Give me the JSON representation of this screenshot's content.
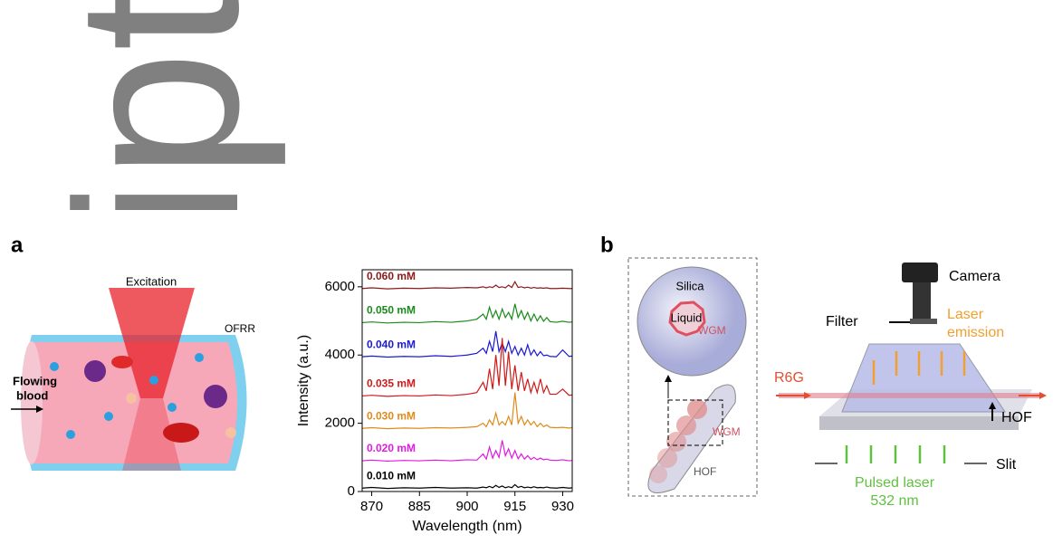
{
  "watermark": "ipt",
  "panel_a": {
    "label": "a",
    "illustration": {
      "excitation": "Excitation",
      "ofrr": "OFRR",
      "flow": [
        "Flowing",
        "blood"
      ]
    }
  },
  "chart_data": {
    "type": "line",
    "xlabel": "Wavelength (nm)",
    "ylabel": "Intensity (a.u.)",
    "xlim": [
      867,
      933
    ],
    "ylim": [
      0,
      6500
    ],
    "xticks": [
      870,
      885,
      900,
      915,
      930
    ],
    "yticks": [
      0,
      2000,
      4000,
      6000
    ],
    "x": [
      867,
      870,
      875,
      880,
      885,
      890,
      895,
      900,
      903,
      905,
      906,
      907,
      908,
      909,
      910,
      911,
      912,
      913,
      914,
      915,
      916,
      917,
      918,
      919,
      920,
      921,
      922,
      923,
      924,
      925,
      926,
      928,
      930,
      932,
      933
    ],
    "series": [
      {
        "name": "0.060 mM",
        "color": "#8b1a1a",
        "values": [
          5950,
          5970,
          5940,
          5960,
          5950,
          5970,
          5960,
          5980,
          5970,
          6000,
          5970,
          6000,
          5980,
          6050,
          5980,
          6000,
          5970,
          6050,
          5980,
          6150,
          5980,
          6000,
          5970,
          5990,
          5960,
          5980,
          5960,
          5970,
          5960,
          5970,
          5950,
          5950,
          5960,
          5950,
          5950
        ]
      },
      {
        "name": "0.050 mM",
        "color": "#1a8a1a",
        "values": [
          4950,
          4970,
          4940,
          4960,
          4950,
          4980,
          4960,
          5000,
          5050,
          5200,
          5050,
          5400,
          5100,
          5300,
          5050,
          5350,
          5100,
          5250,
          5050,
          5500,
          5100,
          5300,
          5050,
          5250,
          5000,
          5200,
          5000,
          5150,
          4990,
          5100,
          4980,
          4960,
          4990,
          4960,
          4970
        ]
      },
      {
        "name": "0.040 mM",
        "color": "#1a1ad0",
        "values": [
          3950,
          3970,
          3940,
          3960,
          3950,
          3980,
          3960,
          4000,
          4050,
          4200,
          4050,
          4400,
          4100,
          4700,
          4100,
          4350,
          4100,
          4400,
          4050,
          4250,
          4000,
          4200,
          4000,
          4300,
          4000,
          4150,
          3980,
          4100,
          3980,
          4000,
          3960,
          3950,
          4150,
          3960,
          3970
        ]
      },
      {
        "name": "0.035 mM",
        "color": "#d01a1a",
        "values": [
          2800,
          2820,
          2790,
          2810,
          2800,
          2830,
          2810,
          2850,
          2900,
          3200,
          2950,
          3600,
          3000,
          4000,
          3100,
          4500,
          3100,
          4100,
          3000,
          3700,
          2950,
          3500,
          2950,
          3300,
          2900,
          3200,
          2900,
          3300,
          2900,
          3100,
          2850,
          2850,
          3000,
          2820,
          2830
        ]
      },
      {
        "name": "0.030 mM",
        "color": "#e08a1a",
        "values": [
          1850,
          1870,
          1840,
          1860,
          1850,
          1870,
          1860,
          1880,
          1900,
          2000,
          1900,
          2100,
          1950,
          2300,
          1950,
          2050,
          1950,
          2200,
          1950,
          2900,
          2000,
          2200,
          1950,
          2100,
          1950,
          2050,
          1900,
          2000,
          1900,
          1950,
          1880,
          1870,
          1880,
          1860,
          1870
        ]
      },
      {
        "name": "0.020 mM",
        "color": "#e01ae0",
        "values": [
          900,
          920,
          890,
          910,
          900,
          920,
          900,
          930,
          920,
          1100,
          950,
          1300,
          980,
          1200,
          1000,
          1500,
          1050,
          1250,
          980,
          1200,
          960,
          1100,
          950,
          1050,
          940,
          1000,
          930,
          980,
          930,
          950,
          920,
          910,
          930,
          900,
          910
        ]
      },
      {
        "name": "0.010 mM",
        "color": "#000000",
        "values": [
          100,
          120,
          90,
          110,
          100,
          120,
          100,
          110,
          100,
          130,
          110,
          150,
          110,
          180,
          120,
          160,
          110,
          140,
          110,
          200,
          120,
          150,
          110,
          130,
          110,
          140,
          110,
          120,
          110,
          130,
          110,
          100,
          120,
          100,
          110
        ]
      }
    ]
  },
  "panel_b": {
    "label": "b",
    "inset": {
      "silica": "Silica",
      "liquid": "Liquid",
      "wgm_top": "WGM",
      "wgm_bottom": "WGM",
      "hof": "HOF"
    },
    "setup": {
      "camera": "Camera",
      "filter": "Filter",
      "laser_emission": [
        "Laser",
        "emission"
      ],
      "r6g": "R6G",
      "hof": "HOF",
      "slit": "Slit",
      "pulsed": [
        "Pulsed laser",
        "532 nm"
      ]
    }
  }
}
